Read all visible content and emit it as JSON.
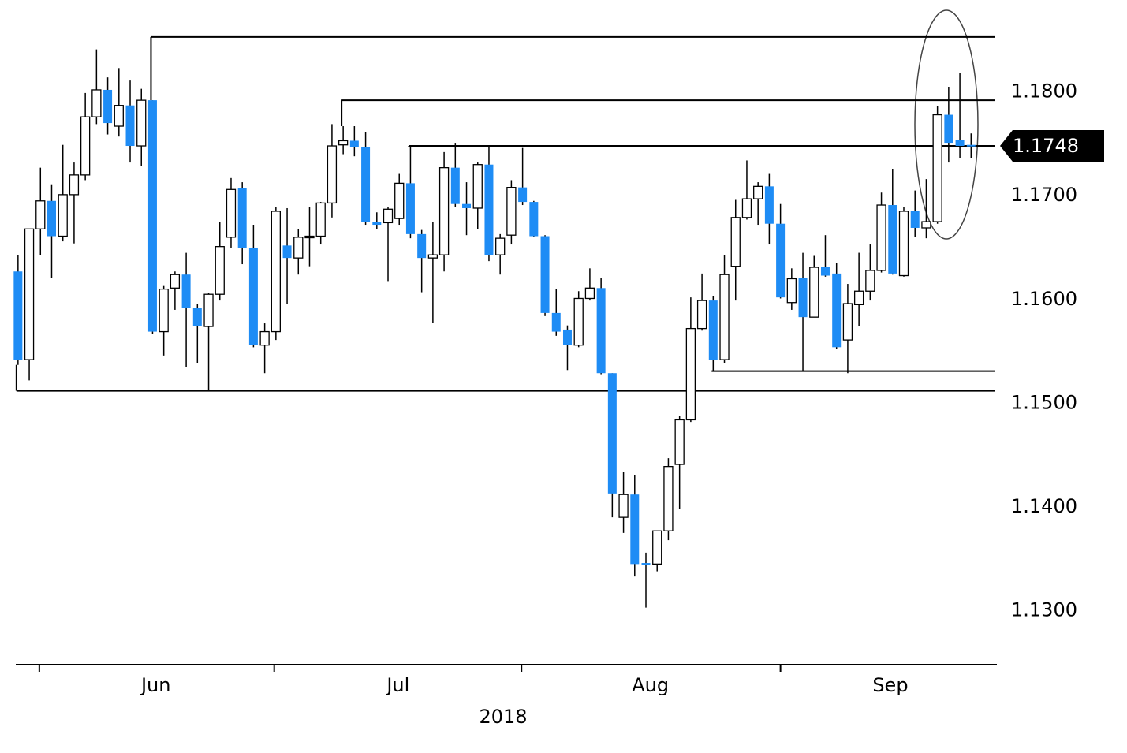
{
  "chart_data": {
    "type": "candlestick",
    "xlabel": "2018",
    "xlim": [
      -0.2,
      87.3
    ],
    "ylim": [
      1.1248,
      1.1881
    ],
    "yticks": [
      {
        "value": 1.13,
        "label": "1.1300"
      },
      {
        "value": 1.14,
        "label": "1.1400"
      },
      {
        "value": 1.15,
        "label": "1.1500"
      },
      {
        "value": 1.16,
        "label": "1.1600"
      },
      {
        "value": 1.17,
        "label": "1.1700"
      },
      {
        "value": 1.18,
        "label": "1.1800"
      }
    ],
    "xticks": [
      {
        "value": 12.3,
        "label": "Jun"
      },
      {
        "value": 33.9,
        "label": "Jul"
      },
      {
        "value": 56.4,
        "label": "Aug"
      },
      {
        "value": 77.8,
        "label": "Sep"
      }
    ],
    "month_boundaries": [
      1.9,
      22.85,
      44.9,
      68.0
    ],
    "up_color": "#ffffff",
    "down_color": "#1e8cf5",
    "open": [
      1.1627,
      1.1542,
      1.1668,
      1.1695,
      1.1661,
      1.1701,
      1.172,
      1.1776,
      1.1802,
      1.1767,
      1.1787,
      1.1748,
      1.1792,
      1.1569,
      1.1611,
      1.1624,
      1.1592,
      1.1574,
      1.1605,
      1.166,
      1.1707,
      1.165,
      1.1556,
      1.1569,
      1.1652,
      1.164,
      1.166,
      1.1661,
      1.1693,
      1.1749,
      1.1753,
      1.1747,
      1.1675,
      1.1674,
      1.1678,
      1.1712,
      1.1663,
      1.164,
      1.1643,
      1.1727,
      1.1692,
      1.1688,
      1.173,
      1.1643,
      1.1662,
      1.1708,
      1.1694,
      1.1661,
      1.1587,
      1.1571,
      1.1556,
      1.1601,
      1.1611,
      1.1529,
      1.139,
      1.1412,
      1.1346,
      1.1345,
      1.1377,
      1.1441,
      1.1484,
      1.1572,
      1.1599,
      1.1542,
      1.1632,
      1.1679,
      1.1697,
      1.1709,
      1.1673,
      1.1597,
      1.1621,
      1.1583,
      1.1631,
      1.1625,
      1.1561,
      1.1595,
      1.1608,
      1.1628,
      1.1691,
      1.1623,
      1.1685,
      1.1669,
      1.1675,
      1.1778,
      1.1754,
      1.1749
    ],
    "high": [
      1.1643,
      1.1668,
      1.1727,
      1.1711,
      1.1749,
      1.1732,
      1.1799,
      1.1841,
      1.1814,
      1.1823,
      1.1811,
      1.1803,
      1.1792,
      1.1613,
      1.1627,
      1.1645,
      1.1596,
      1.1606,
      1.1675,
      1.1717,
      1.1713,
      1.1672,
      1.1577,
      1.1689,
      1.1688,
      1.1668,
      1.1689,
      1.1694,
      1.1769,
      1.1767,
      1.1767,
      1.1761,
      1.1684,
      1.1689,
      1.1721,
      1.1747,
      1.1667,
      1.1675,
      1.1742,
      1.1751,
      1.1713,
      1.1732,
      1.1747,
      1.1663,
      1.1715,
      1.1746,
      1.1695,
      1.1662,
      1.161,
      1.1575,
      1.1608,
      1.163,
      1.1621,
      1.1529,
      1.1434,
      1.1431,
      1.1356,
      1.1377,
      1.1447,
      1.1488,
      1.1602,
      1.1625,
      1.1603,
      1.1643,
      1.1696,
      1.1734,
      1.1713,
      1.1721,
      1.1692,
      1.163,
      1.1645,
      1.1642,
      1.1662,
      1.1635,
      1.1615,
      1.1645,
      1.1653,
      1.1703,
      1.1726,
      1.1689,
      1.1705,
      1.1716,
      1.1786,
      1.1805,
      1.1818,
      1.176
    ],
    "low": [
      1.1537,
      1.1522,
      1.1643,
      1.1621,
      1.1656,
      1.1654,
      1.1715,
      1.1769,
      1.1759,
      1.1757,
      1.1732,
      1.1729,
      1.1567,
      1.1546,
      1.159,
      1.1535,
      1.1539,
      1.1512,
      1.1599,
      1.165,
      1.1634,
      1.1554,
      1.1529,
      1.1561,
      1.1596,
      1.1624,
      1.1632,
      1.1653,
      1.1679,
      1.174,
      1.1738,
      1.1672,
      1.1668,
      1.1617,
      1.1672,
      1.1659,
      1.1607,
      1.1577,
      1.1627,
      1.1689,
      1.1662,
      1.1668,
      1.1637,
      1.1624,
      1.1653,
      1.1691,
      1.166,
      1.1584,
      1.1565,
      1.1532,
      1.1554,
      1.1599,
      1.1528,
      1.139,
      1.1375,
      1.1333,
      1.1303,
      1.1338,
      1.1368,
      1.1398,
      1.1482,
      1.157,
      1.1531,
      1.1539,
      1.1599,
      1.1677,
      1.1672,
      1.1653,
      1.1601,
      1.159,
      1.1531,
      1.1583,
      1.1622,
      1.1552,
      1.1529,
      1.1574,
      1.1599,
      1.1626,
      1.1624,
      1.1622,
      1.166,
      1.1659,
      1.1673,
      1.1732,
      1.1736,
      1.1736
    ],
    "close": [
      1.1542,
      1.1668,
      1.1695,
      1.1661,
      1.1701,
      1.172,
      1.1776,
      1.1802,
      1.177,
      1.1787,
      1.1748,
      1.1792,
      1.1569,
      1.161,
      1.1624,
      1.1592,
      1.1574,
      1.1605,
      1.1651,
      1.1706,
      1.165,
      1.1556,
      1.1569,
      1.1685,
      1.164,
      1.166,
      1.1661,
      1.1693,
      1.1748,
      1.1753,
      1.1747,
      1.1675,
      1.1672,
      1.1687,
      1.1712,
      1.1663,
      1.164,
      1.1643,
      1.1727,
      1.1692,
      1.1688,
      1.173,
      1.1643,
      1.1659,
      1.1708,
      1.1694,
      1.1661,
      1.1587,
      1.1569,
      1.1556,
      1.1601,
      1.1611,
      1.1529,
      1.1413,
      1.1412,
      1.1345,
      1.1345,
      1.1377,
      1.1439,
      1.1484,
      1.1572,
      1.1599,
      1.1542,
      1.1624,
      1.1679,
      1.1697,
      1.1709,
      1.1673,
      1.1602,
      1.162,
      1.1583,
      1.1631,
      1.1623,
      1.1554,
      1.1596,
      1.1608,
      1.1628,
      1.1691,
      1.1625,
      1.1685,
      1.1669,
      1.1675,
      1.1778,
      1.1751,
      1.1748,
      1.1748
    ],
    "levels": [
      {
        "value": 1.1853,
        "from": 12
      },
      {
        "value": 1.1792,
        "from": 29
      },
      {
        "value": 1.1748,
        "from": 35
      },
      {
        "value": 1.1531,
        "from": 62
      },
      {
        "value": 1.1512,
        "from": 0
      }
    ],
    "current_price": {
      "value": 1.1748,
      "label": "1.1748"
    }
  }
}
